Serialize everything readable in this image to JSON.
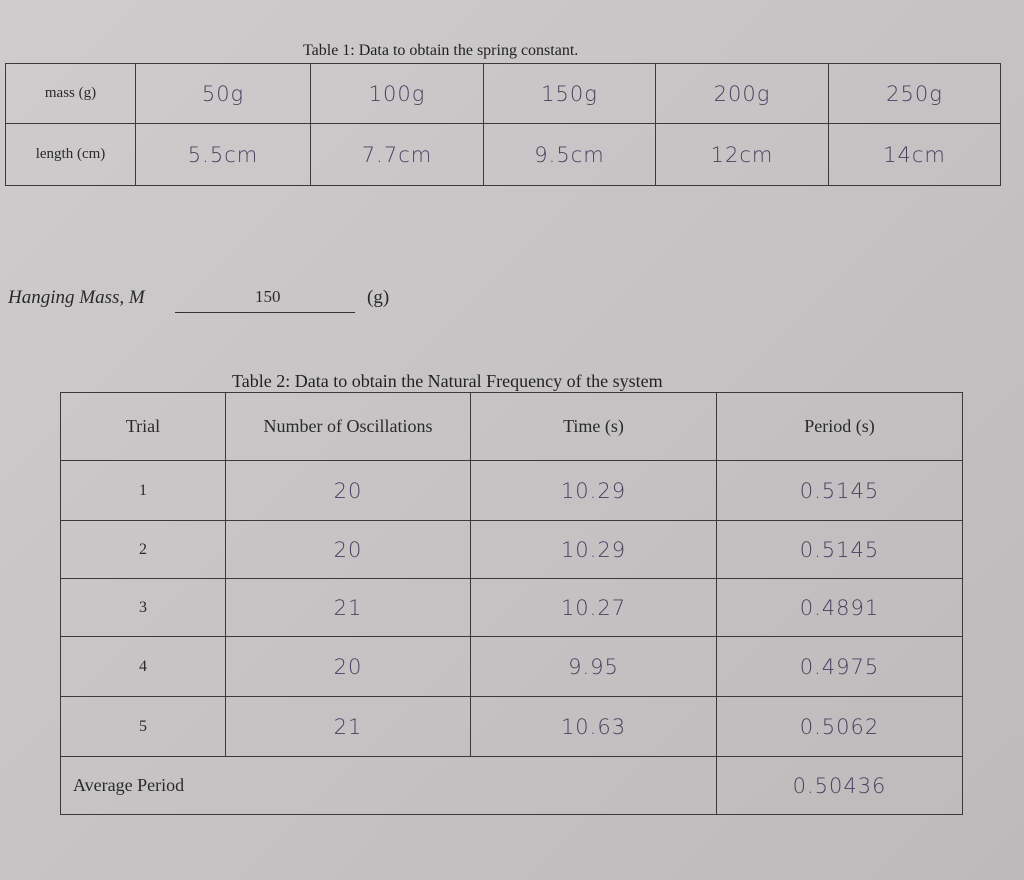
{
  "table1": {
    "title": "Table 1: Data to obtain the spring constant.",
    "rows": [
      [
        "mass (g)",
        "50g",
        "100g",
        "150g",
        "200g",
        "250g"
      ],
      [
        "length (cm)",
        "5.5cm",
        "7.7cm",
        "9.5cm",
        "12cm",
        "14cm"
      ]
    ]
  },
  "hanging_mass": {
    "label": "Hanging Mass, M",
    "value": "150",
    "unit": "(g)"
  },
  "table2": {
    "title": "Table 2: Data to obtain the Natural Frequency of the system",
    "header": [
      "Trial",
      "Number of Oscillations",
      "Time (s)",
      "Period (s)"
    ],
    "rows": [
      [
        "1",
        "20",
        "10.29",
        "0.5145"
      ],
      [
        "2",
        "20",
        "10.29",
        "0.5145"
      ],
      [
        "3",
        "21",
        "10.27",
        "0.4891"
      ],
      [
        "4",
        "20",
        "9.95",
        "0.4975"
      ],
      [
        "5",
        "21",
        "10.63",
        "0.5062"
      ]
    ],
    "average": {
      "label": "Average Period",
      "value": "0.50436"
    }
  }
}
